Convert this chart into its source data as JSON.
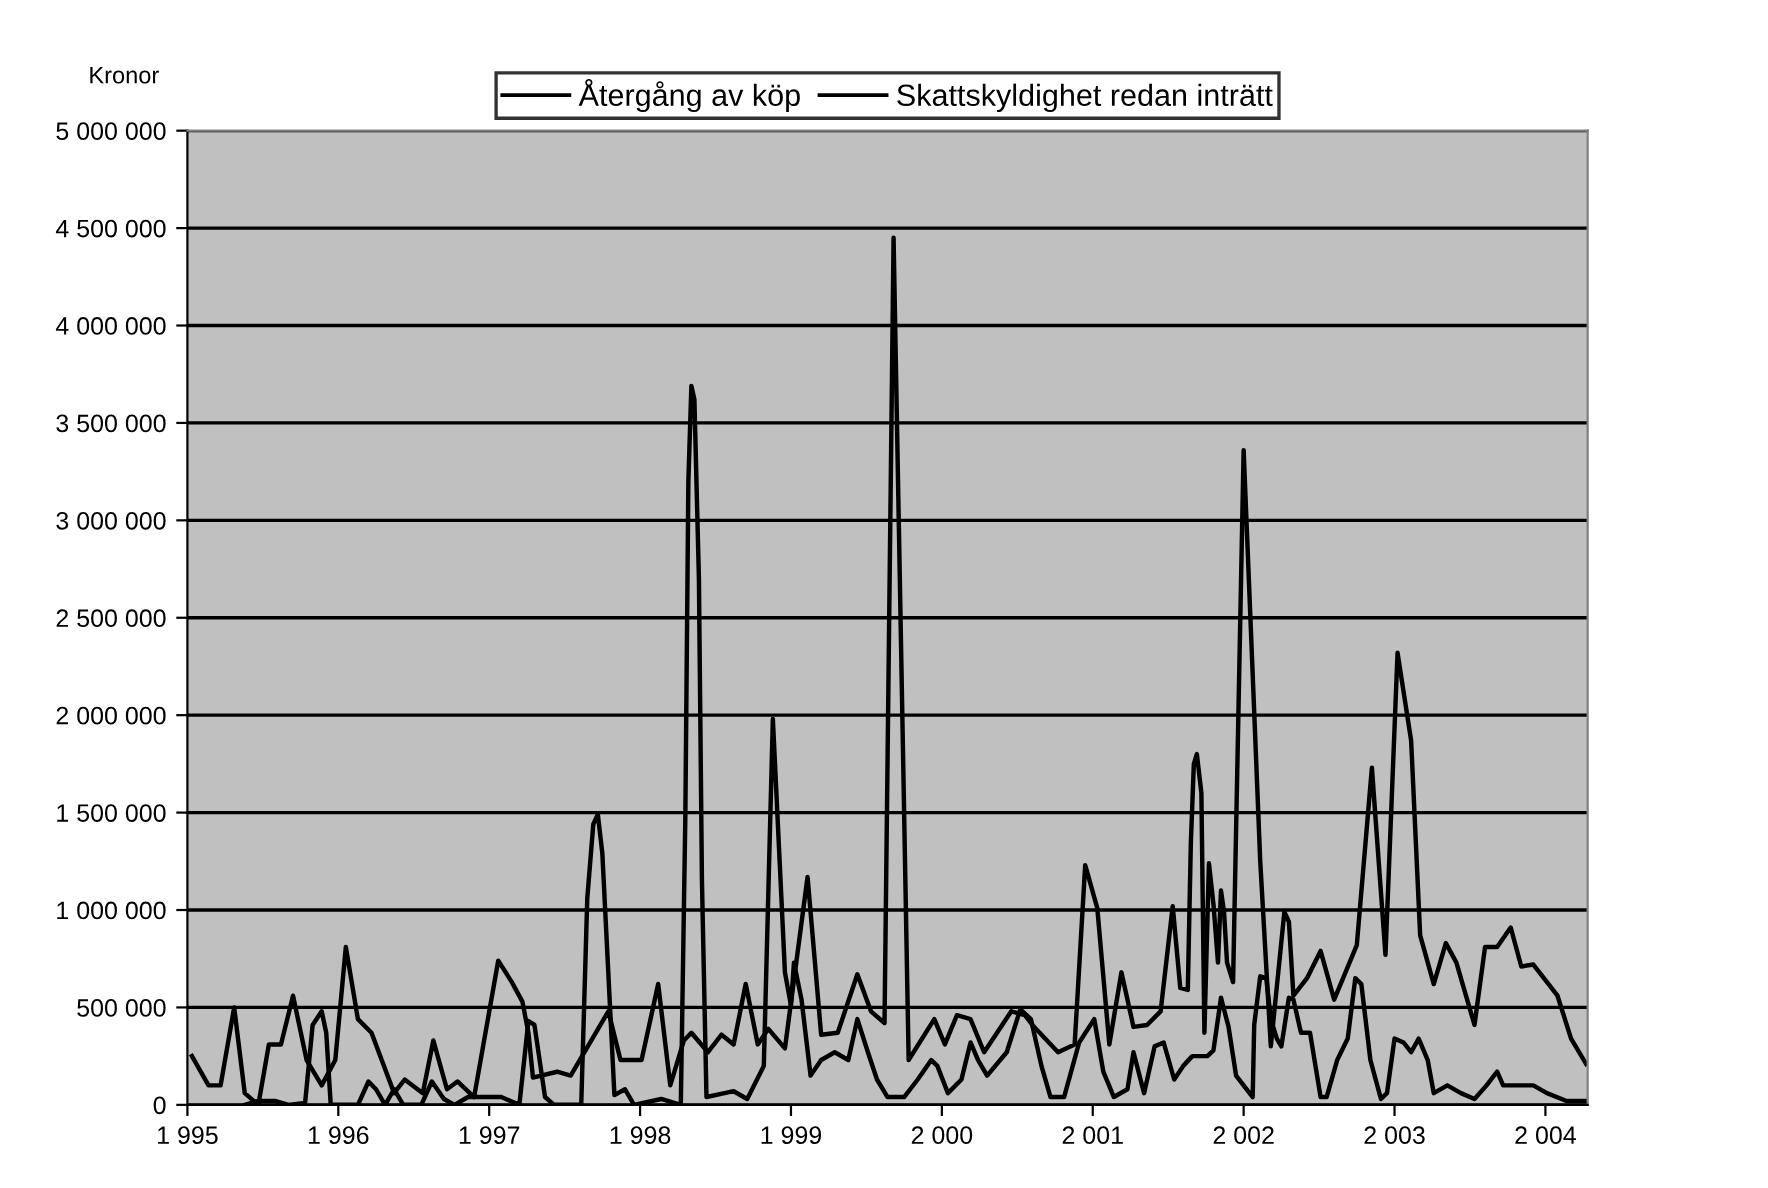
{
  "chart_data": {
    "type": "line",
    "ylabel": "Kronor",
    "legend": "top",
    "grid": "y",
    "xlim": [
      1995,
      2004.28
    ],
    "ylim": [
      0,
      5000000
    ],
    "xticks": [
      {
        "value": 1995,
        "label": "1 995"
      },
      {
        "value": 1996,
        "label": "1 996"
      },
      {
        "value": 1997,
        "label": "1 997"
      },
      {
        "value": 1998,
        "label": "1 998"
      },
      {
        "value": 1999,
        "label": "1 999"
      },
      {
        "value": 2000,
        "label": "2 000"
      },
      {
        "value": 2001,
        "label": "2 001"
      },
      {
        "value": 2002,
        "label": "2 002"
      },
      {
        "value": 2003,
        "label": "2 003"
      },
      {
        "value": 2004,
        "label": "2 004"
      }
    ],
    "yticks": [
      0,
      {
        "value": 500000,
        "label": "500 000"
      },
      {
        "value": 1000000,
        "label": "1 000 000"
      },
      {
        "value": 1500000,
        "label": "1 500 000"
      },
      {
        "value": 2000000,
        "label": "2 000 000"
      },
      {
        "value": 2500000,
        "label": "2 500 000"
      },
      {
        "value": 3000000,
        "label": "3 000 000"
      },
      {
        "value": 3500000,
        "label": "3 500 000"
      },
      {
        "value": 4000000,
        "label": "4 000 000"
      },
      {
        "value": 4500000,
        "label": "4 500 000"
      },
      {
        "value": 5000000,
        "label": "5 000 000"
      }
    ],
    "series": [
      {
        "name": "Återgång av köp",
        "color": "#000000",
        "x": [
          1995.03,
          1995.14,
          1995.22,
          1995.31,
          1995.38,
          1995.47,
          1995.54,
          1995.62,
          1995.7,
          1995.79,
          1995.89,
          1995.98,
          1996.05,
          1996.13,
          1996.22,
          1996.37,
          1996.44,
          1996.56,
          1996.63,
          1996.72,
          1996.79,
          1996.9,
          1997.06,
          1997.15,
          1997.22,
          1997.26,
          1997.29,
          1997.45,
          1997.54,
          1997.79,
          1997.87,
          1998.01,
          1998.12,
          1998.2,
          1998.29,
          1998.34,
          1998.45,
          1998.54,
          1998.62,
          1998.7,
          1998.78,
          1998.85,
          1998.96,
          1999.11,
          1999.2,
          1999.31,
          1999.44,
          1999.53,
          1999.62,
          1999.68,
          1999.78,
          1999.95,
          2000.02,
          2000.1,
          2000.19,
          2000.28,
          2000.46,
          2000.55,
          2000.6,
          2000.77,
          2000.88,
          2000.95,
          2001.03,
          2001.11,
          2001.19,
          2001.27,
          2001.36,
          2001.45,
          2001.53,
          2001.58,
          2001.63,
          2001.65,
          2001.67,
          2001.69,
          2001.72,
          2001.74,
          2001.77,
          2001.8,
          2001.83,
          2001.85,
          2001.87,
          2001.89,
          2001.93,
          2002.0,
          2002.11,
          2002.18,
          2002.27,
          2002.3,
          2002.33,
          2002.42,
          2002.51,
          2002.6,
          2002.75,
          2002.85,
          2002.94,
          2003.02,
          2003.11,
          2003.17,
          2003.26,
          2003.34,
          2003.41,
          2003.53,
          2003.6,
          2003.68,
          2003.77,
          2003.84,
          2003.92,
          2004.08,
          2004.17,
          2004.27
        ],
        "values": [
          250000,
          100000,
          100000,
          500000,
          60000,
          0,
          310000,
          310000,
          560000,
          230000,
          100000,
          230000,
          810000,
          440000,
          370000,
          60000,
          130000,
          60000,
          330000,
          80000,
          120000,
          40000,
          740000,
          630000,
          530000,
          370000,
          140000,
          170000,
          150000,
          480000,
          230000,
          230000,
          620000,
          100000,
          330000,
          370000,
          270000,
          360000,
          310000,
          620000,
          310000,
          390000,
          290000,
          1170000,
          360000,
          370000,
          670000,
          480000,
          420000,
          4450000,
          230000,
          440000,
          310000,
          460000,
          440000,
          270000,
          480000,
          460000,
          410000,
          270000,
          310000,
          1230000,
          1010000,
          310000,
          680000,
          400000,
          410000,
          480000,
          1020000,
          600000,
          590000,
          1340000,
          1750000,
          1800000,
          1600000,
          370000,
          1240000,
          1030000,
          730000,
          1100000,
          990000,
          730000,
          630000,
          3360000,
          1250000,
          300000,
          990000,
          940000,
          560000,
          650000,
          790000,
          540000,
          820000,
          1730000,
          770000,
          2320000,
          1870000,
          870000,
          620000,
          830000,
          730000,
          410000,
          810000,
          810000,
          910000,
          710000,
          720000,
          560000,
          340000,
          210000
        ]
      },
      {
        "name": "Skattskyldighet redan inträtt",
        "color": "#000000",
        "x": [
          1995.38,
          1995.47,
          1995.58,
          1995.67,
          1995.78,
          1995.83,
          1995.89,
          1995.92,
          1995.95,
          1996.13,
          1996.2,
          1996.25,
          1996.31,
          1996.37,
          1996.43,
          1996.55,
          1996.62,
          1996.7,
          1996.77,
          1996.86,
          1997.08,
          1997.2,
          1997.26,
          1997.3,
          1997.37,
          1997.43,
          1997.61,
          1997.65,
          1997.69,
          1997.72,
          1997.75,
          1997.83,
          1997.9,
          1997.96,
          1998.14,
          1998.27,
          1998.3,
          1998.32,
          1998.34,
          1998.36,
          1998.39,
          1998.41,
          1998.44,
          1998.56,
          1998.62,
          1998.71,
          1998.82,
          1998.88,
          1998.96,
          1999.0,
          1999.02,
          1999.07,
          1999.13,
          1999.2,
          1999.29,
          1999.38,
          1999.44,
          1999.51,
          1999.57,
          1999.64,
          1999.75,
          1999.84,
          1999.93,
          1999.97,
          2000.04,
          2000.13,
          2000.19,
          2000.24,
          2000.3,
          2000.43,
          2000.52,
          2000.59,
          2000.66,
          2000.72,
          2000.81,
          2000.91,
          2001.01,
          2001.07,
          2001.14,
          2001.23,
          2001.27,
          2001.34,
          2001.41,
          2001.47,
          2001.54,
          2001.6,
          2001.66,
          2001.76,
          2001.8,
          2001.85,
          2001.9,
          2001.95,
          2002.0,
          2002.06,
          2002.07,
          2002.11,
          2002.15,
          2002.18,
          2002.22,
          2002.25,
          2002.3,
          2002.33,
          2002.38,
          2002.44,
          2002.51,
          2002.55,
          2002.62,
          2002.69,
          2002.74,
          2002.78,
          2002.84,
          2002.91,
          2002.95,
          2003.0,
          2003.06,
          2003.11,
          2003.16,
          2003.22,
          2003.26,
          2003.35,
          2003.44,
          2003.53,
          2003.61,
          2003.68,
          2003.72,
          2003.92,
          2004.01,
          2004.14,
          2004.27
        ],
        "values": [
          0,
          20000,
          20000,
          0,
          10000,
          410000,
          480000,
          370000,
          0,
          0,
          120000,
          80000,
          0,
          80000,
          0,
          0,
          120000,
          30000,
          0,
          40000,
          40000,
          0,
          430000,
          410000,
          40000,
          0,
          0,
          1060000,
          1440000,
          1490000,
          1290000,
          50000,
          80000,
          0,
          30000,
          0,
          1480000,
          3200000,
          3690000,
          3620000,
          2700000,
          1150000,
          40000,
          60000,
          70000,
          30000,
          200000,
          1980000,
          680000,
          510000,
          730000,
          540000,
          150000,
          230000,
          270000,
          230000,
          440000,
          270000,
          130000,
          40000,
          40000,
          130000,
          230000,
          200000,
          60000,
          130000,
          320000,
          230000,
          150000,
          270000,
          490000,
          440000,
          200000,
          40000,
          40000,
          320000,
          440000,
          170000,
          40000,
          80000,
          270000,
          60000,
          300000,
          320000,
          130000,
          200000,
          250000,
          250000,
          280000,
          550000,
          400000,
          150000,
          100000,
          40000,
          410000,
          660000,
          650000,
          440000,
          340000,
          300000,
          550000,
          540000,
          370000,
          370000,
          40000,
          40000,
          230000,
          340000,
          650000,
          620000,
          230000,
          30000,
          60000,
          340000,
          320000,
          270000,
          340000,
          230000,
          60000,
          100000,
          60000,
          30000,
          100000,
          170000,
          100000,
          100000,
          60000,
          20000,
          20000
        ]
      }
    ]
  }
}
